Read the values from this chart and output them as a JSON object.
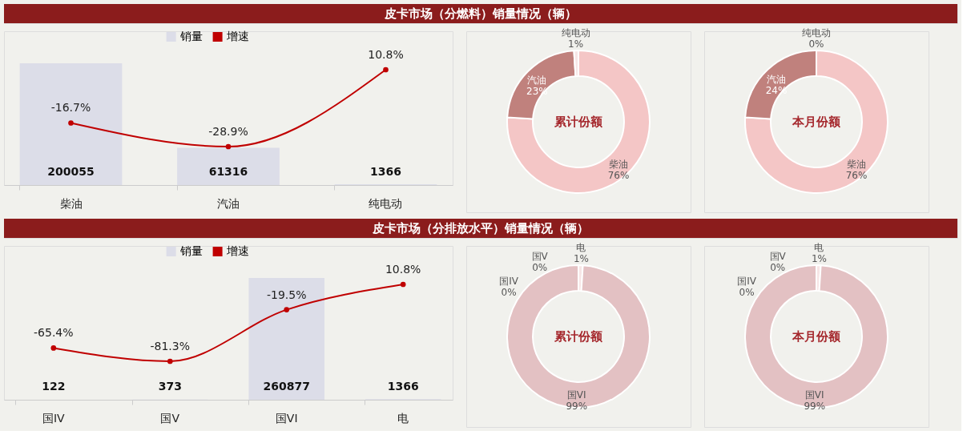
{
  "chart_data": [
    {
      "type": "bar",
      "title": "皮卡市场（分燃料）销量情况（辆）",
      "categories": [
        "柴油",
        "汽油",
        "纯电动"
      ],
      "legend": "top",
      "marker": "circle",
      "tick_labels": "x",
      "series": [
        {
          "name": "销量",
          "type": "bar",
          "color": "#dcdde8",
          "values": [
            200055,
            61316,
            1366
          ],
          "data_labels": true
        },
        {
          "name": "增速",
          "type": "line",
          "axis": "y2",
          "color": "#c00000",
          "values": [
            -16.7,
            -28.9,
            10.8
          ],
          "value_labels": [
            "-16.7%",
            "-28.9%",
            "10.8%"
          ]
        }
      ]
    },
    {
      "type": "donut",
      "title": "累计份额",
      "categories": [
        "柴油",
        "汽油",
        "纯电动"
      ],
      "values": [
        76,
        23,
        1
      ],
      "colors": [
        "#f4c6c6",
        "#c0817d",
        "#f7e6e6"
      ],
      "value_labels": [
        "76%",
        "23%",
        "1%"
      ]
    },
    {
      "type": "donut",
      "title": "本月份额",
      "categories": [
        "柴油",
        "汽油",
        "纯电动"
      ],
      "values": [
        76,
        24,
        0
      ],
      "colors": [
        "#f4c6c6",
        "#c0817d",
        "#f7e6e6"
      ],
      "value_labels": [
        "76%",
        "24%",
        "0%"
      ]
    },
    {
      "type": "bar",
      "title": "皮卡市场（分排放水平）销量情况（辆）",
      "categories": [
        "国IV",
        "国Ⅴ",
        "国VI",
        "电"
      ],
      "legend": "top",
      "marker": "circle",
      "tick_labels": "x",
      "series": [
        {
          "name": "销量",
          "type": "bar",
          "color": "#dcdde8",
          "values": [
            122,
            373,
            260877,
            1366
          ],
          "data_labels": true
        },
        {
          "name": "增速",
          "type": "line",
          "axis": "y2",
          "color": "#c00000",
          "values": [
            -65.4,
            -81.3,
            -19.5,
            10.8
          ],
          "value_labels": [
            "-65.4%",
            "-81.3%",
            "-19.5%",
            "10.8%"
          ]
        }
      ]
    },
    {
      "type": "donut",
      "title": "累计份额",
      "categories": [
        "国IV",
        "国Ⅴ",
        "电",
        "国VI"
      ],
      "values": [
        0,
        0,
        1,
        99
      ],
      "colors": [
        "#f7e6e6",
        "#f7e6e6",
        "#f7e6e6",
        "#e3c1c3"
      ],
      "value_labels": [
        "0%",
        "0%",
        "1%",
        "99%"
      ]
    },
    {
      "type": "donut",
      "title": "本月份额",
      "categories": [
        "国IV",
        "国Ⅴ",
        "电",
        "国VI"
      ],
      "values": [
        0,
        0,
        1,
        99
      ],
      "colors": [
        "#f7e6e6",
        "#f7e6e6",
        "#f7e6e6",
        "#e3c1c3"
      ],
      "value_labels": [
        "0%",
        "0%",
        "1%",
        "99%"
      ]
    }
  ]
}
